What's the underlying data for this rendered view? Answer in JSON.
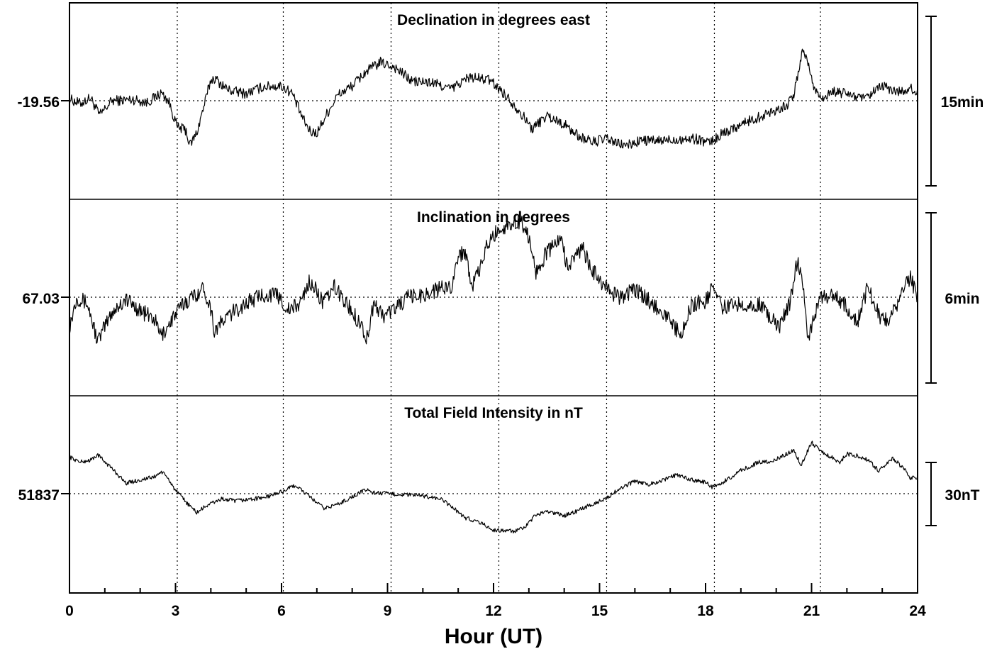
{
  "chart_data": {
    "type": "line",
    "xlabel": "Hour (UT)",
    "xlim": [
      0,
      24
    ],
    "xticks": [
      "0",
      "3",
      "6",
      "9",
      "12",
      "15",
      "18",
      "21",
      "24"
    ],
    "vertical_gridlines_hours": [
      3.05,
      6.05,
      9.1,
      12.15,
      15.2,
      18.25,
      21.25
    ],
    "panels": [
      {
        "title": "Declination in degrees east",
        "baseline_label": "-19.56",
        "scale_label": "15min",
        "series": [
          {
            "x": 0,
            "y": 0.3
          },
          {
            "x": 0.3,
            "y": -0.5
          },
          {
            "x": 0.6,
            "y": 0.5
          },
          {
            "x": 0.85,
            "y": -2.5
          },
          {
            "x": 1.2,
            "y": 0
          },
          {
            "x": 1.8,
            "y": 0.2
          },
          {
            "x": 2.2,
            "y": -0.3
          },
          {
            "x": 2.6,
            "y": 1.3
          },
          {
            "x": 2.8,
            "y": 0
          },
          {
            "x": 3.05,
            "y": -4.5
          },
          {
            "x": 3.3,
            "y": -5
          },
          {
            "x": 3.4,
            "y": -7.6
          },
          {
            "x": 3.6,
            "y": -5.5
          },
          {
            "x": 3.8,
            "y": -1
          },
          {
            "x": 4.0,
            "y": 3.5
          },
          {
            "x": 4.1,
            "y": 3.8
          },
          {
            "x": 4.5,
            "y": 1.8
          },
          {
            "x": 5.0,
            "y": 1.2
          },
          {
            "x": 5.5,
            "y": 2.4
          },
          {
            "x": 6.0,
            "y": 2.5
          },
          {
            "x": 6.3,
            "y": 1.3
          },
          {
            "x": 6.6,
            "y": -3
          },
          {
            "x": 6.8,
            "y": -5.2
          },
          {
            "x": 7.0,
            "y": -5.5
          },
          {
            "x": 7.3,
            "y": -2
          },
          {
            "x": 7.6,
            "y": 1
          },
          {
            "x": 8.0,
            "y": 2.5
          },
          {
            "x": 8.4,
            "y": 5
          },
          {
            "x": 8.8,
            "y": 6.5
          },
          {
            "x": 9.2,
            "y": 5.7
          },
          {
            "x": 9.7,
            "y": 3.3
          },
          {
            "x": 10.3,
            "y": 3
          },
          {
            "x": 10.8,
            "y": 2
          },
          {
            "x": 11.3,
            "y": 4
          },
          {
            "x": 11.9,
            "y": 3.5
          },
          {
            "x": 12.3,
            "y": 1.2
          },
          {
            "x": 12.7,
            "y": -1.5
          },
          {
            "x": 13.1,
            "y": -4.8
          },
          {
            "x": 13.5,
            "y": -2.5
          },
          {
            "x": 14.0,
            "y": -4
          },
          {
            "x": 14.4,
            "y": -6
          },
          {
            "x": 14.8,
            "y": -7
          },
          {
            "x": 15.2,
            "y": -6.5
          },
          {
            "x": 15.5,
            "y": -7.3
          },
          {
            "x": 15.8,
            "y": -7.6
          },
          {
            "x": 16.2,
            "y": -6.7
          },
          {
            "x": 16.6,
            "y": -6.9
          },
          {
            "x": 17.0,
            "y": -6.6
          },
          {
            "x": 17.4,
            "y": -6.5
          },
          {
            "x": 17.8,
            "y": -6.5
          },
          {
            "x": 18.1,
            "y": -7.2
          },
          {
            "x": 18.5,
            "y": -5.5
          },
          {
            "x": 19.0,
            "y": -4
          },
          {
            "x": 19.5,
            "y": -2.8
          },
          {
            "x": 20.0,
            "y": -1.5
          },
          {
            "x": 20.3,
            "y": -0.8
          },
          {
            "x": 20.5,
            "y": 1
          },
          {
            "x": 20.6,
            "y": 4
          },
          {
            "x": 20.75,
            "y": 8.9
          },
          {
            "x": 20.9,
            "y": 6.5
          },
          {
            "x": 21.05,
            "y": 2.3
          },
          {
            "x": 21.3,
            "y": 0.5
          },
          {
            "x": 21.6,
            "y": 1.5
          },
          {
            "x": 22.0,
            "y": 1.2
          },
          {
            "x": 22.5,
            "y": 0.2
          },
          {
            "x": 23.0,
            "y": 2.5
          },
          {
            "x": 23.4,
            "y": 1.5
          },
          {
            "x": 23.8,
            "y": 2
          },
          {
            "x": 24.0,
            "y": 1.5
          }
        ]
      },
      {
        "title": "Inclination in degrees",
        "baseline_label": "67.03",
        "scale_label": "6min",
        "series": [
          {
            "x": 0,
            "y": -4
          },
          {
            "x": 0.2,
            "y": 0
          },
          {
            "x": 0.5,
            "y": -0.8
          },
          {
            "x": 0.8,
            "y": -6
          },
          {
            "x": 1.2,
            "y": -2
          },
          {
            "x": 1.6,
            "y": -0.3
          },
          {
            "x": 2.0,
            "y": -1.8
          },
          {
            "x": 2.4,
            "y": -3
          },
          {
            "x": 2.6,
            "y": -5.3
          },
          {
            "x": 2.9,
            "y": -3
          },
          {
            "x": 3.2,
            "y": -1
          },
          {
            "x": 3.6,
            "y": 0.5
          },
          {
            "x": 3.8,
            "y": 1.2
          },
          {
            "x": 4.0,
            "y": -1.5
          },
          {
            "x": 4.1,
            "y": -4.5
          },
          {
            "x": 4.5,
            "y": -2.5
          },
          {
            "x": 5.0,
            "y": -0.8
          },
          {
            "x": 5.5,
            "y": 0.4
          },
          {
            "x": 5.9,
            "y": 0.2
          },
          {
            "x": 6.2,
            "y": -1.8
          },
          {
            "x": 6.5,
            "y": -1
          },
          {
            "x": 6.8,
            "y": 2.2
          },
          {
            "x": 7.2,
            "y": -0.8
          },
          {
            "x": 7.5,
            "y": 1.4
          },
          {
            "x": 7.9,
            "y": -1.3
          },
          {
            "x": 8.3,
            "y": -4
          },
          {
            "x": 8.4,
            "y": -6
          },
          {
            "x": 8.6,
            "y": -1
          },
          {
            "x": 8.9,
            "y": -2.5
          },
          {
            "x": 9.2,
            "y": -1.5
          },
          {
            "x": 9.6,
            "y": 0
          },
          {
            "x": 10.0,
            "y": 0.3
          },
          {
            "x": 10.4,
            "y": 1
          },
          {
            "x": 10.8,
            "y": 1.5
          },
          {
            "x": 11.0,
            "y": 5.5
          },
          {
            "x": 11.2,
            "y": 6.3
          },
          {
            "x": 11.4,
            "y": 1.5
          },
          {
            "x": 11.6,
            "y": 3.5
          },
          {
            "x": 11.8,
            "y": 6.8
          },
          {
            "x": 12.1,
            "y": 9
          },
          {
            "x": 12.5,
            "y": 10
          },
          {
            "x": 12.8,
            "y": 10.3
          },
          {
            "x": 13.0,
            "y": 8
          },
          {
            "x": 13.2,
            "y": 3.5
          },
          {
            "x": 13.5,
            "y": 6
          },
          {
            "x": 13.9,
            "y": 8
          },
          {
            "x": 14.1,
            "y": 4
          },
          {
            "x": 14.5,
            "y": 6.8
          },
          {
            "x": 14.8,
            "y": 3.5
          },
          {
            "x": 15.0,
            "y": 2.5
          },
          {
            "x": 15.2,
            "y": 1
          },
          {
            "x": 15.6,
            "y": 0
          },
          {
            "x": 16.0,
            "y": 1
          },
          {
            "x": 16.4,
            "y": -0.5
          },
          {
            "x": 16.8,
            "y": -2
          },
          {
            "x": 17.2,
            "y": -4.5
          },
          {
            "x": 17.3,
            "y": -5.6
          },
          {
            "x": 17.6,
            "y": -1
          },
          {
            "x": 18.0,
            "y": -0.6
          },
          {
            "x": 18.2,
            "y": 1.5
          },
          {
            "x": 18.5,
            "y": -1.5
          },
          {
            "x": 19.0,
            "y": -0.8
          },
          {
            "x": 19.5,
            "y": -1
          },
          {
            "x": 19.8,
            "y": -2.5
          },
          {
            "x": 20.1,
            "y": -4
          },
          {
            "x": 20.4,
            "y": -0.5
          },
          {
            "x": 20.6,
            "y": 5.2
          },
          {
            "x": 20.8,
            "y": 0
          },
          {
            "x": 20.9,
            "y": -5.8
          },
          {
            "x": 21.2,
            "y": -0.5
          },
          {
            "x": 21.6,
            "y": 0.5
          },
          {
            "x": 22.0,
            "y": -1.5
          },
          {
            "x": 22.3,
            "y": -3.3
          },
          {
            "x": 22.6,
            "y": 1.5
          },
          {
            "x": 22.9,
            "y": -2.5
          },
          {
            "x": 23.2,
            "y": -3.2
          },
          {
            "x": 23.6,
            "y": 1
          },
          {
            "x": 23.8,
            "y": 2.7
          },
          {
            "x": 24.0,
            "y": -0.3
          }
        ]
      },
      {
        "title": "Total Field Intensity in nT",
        "baseline_label": "51837",
        "scale_label": "30nT",
        "series": [
          {
            "x": 0,
            "y": 35
          },
          {
            "x": 0.3,
            "y": 30
          },
          {
            "x": 0.6,
            "y": 32
          },
          {
            "x": 0.8,
            "y": 37
          },
          {
            "x": 1.2,
            "y": 24
          },
          {
            "x": 1.6,
            "y": 10
          },
          {
            "x": 2.0,
            "y": 13
          },
          {
            "x": 2.4,
            "y": 16
          },
          {
            "x": 2.6,
            "y": 21
          },
          {
            "x": 2.8,
            "y": 14
          },
          {
            "x": 3.0,
            "y": 3
          },
          {
            "x": 3.3,
            "y": -8
          },
          {
            "x": 3.6,
            "y": -18
          },
          {
            "x": 3.9,
            "y": -11
          },
          {
            "x": 4.3,
            "y": -5
          },
          {
            "x": 4.7,
            "y": -7
          },
          {
            "x": 5.2,
            "y": -5
          },
          {
            "x": 5.6,
            "y": -3
          },
          {
            "x": 6.0,
            "y": 2
          },
          {
            "x": 6.4,
            "y": 8
          },
          {
            "x": 6.8,
            "y": -3
          },
          {
            "x": 7.2,
            "y": -14
          },
          {
            "x": 7.6,
            "y": -10
          },
          {
            "x": 8.0,
            "y": -3
          },
          {
            "x": 8.4,
            "y": 4
          },
          {
            "x": 8.6,
            "y": 1
          },
          {
            "x": 9.0,
            "y": 0
          },
          {
            "x": 9.5,
            "y": -1
          },
          {
            "x": 10.0,
            "y": -2
          },
          {
            "x": 10.5,
            "y": -5
          },
          {
            "x": 10.8,
            "y": -12
          },
          {
            "x": 11.2,
            "y": -23
          },
          {
            "x": 11.6,
            "y": -27
          },
          {
            "x": 12.0,
            "y": -35
          },
          {
            "x": 12.3,
            "y": -35
          },
          {
            "x": 12.6,
            "y": -36
          },
          {
            "x": 12.9,
            "y": -32
          },
          {
            "x": 13.2,
            "y": -20
          },
          {
            "x": 13.6,
            "y": -17
          },
          {
            "x": 14.0,
            "y": -21
          },
          {
            "x": 14.4,
            "y": -16
          },
          {
            "x": 14.8,
            "y": -10
          },
          {
            "x": 15.2,
            "y": -4
          },
          {
            "x": 15.6,
            "y": 5
          },
          {
            "x": 16.0,
            "y": 12
          },
          {
            "x": 16.4,
            "y": 9
          },
          {
            "x": 16.8,
            "y": 13
          },
          {
            "x": 17.2,
            "y": 18
          },
          {
            "x": 17.6,
            "y": 13
          },
          {
            "x": 18.0,
            "y": 11
          },
          {
            "x": 18.2,
            "y": 6
          },
          {
            "x": 18.6,
            "y": 13
          },
          {
            "x": 19.0,
            "y": 22
          },
          {
            "x": 19.5,
            "y": 30
          },
          {
            "x": 19.9,
            "y": 31
          },
          {
            "x": 20.2,
            "y": 36
          },
          {
            "x": 20.5,
            "y": 42
          },
          {
            "x": 20.7,
            "y": 27
          },
          {
            "x": 21.0,
            "y": 49
          },
          {
            "x": 21.2,
            "y": 42
          },
          {
            "x": 21.5,
            "y": 36
          },
          {
            "x": 21.8,
            "y": 30
          },
          {
            "x": 22.0,
            "y": 38
          },
          {
            "x": 22.3,
            "y": 36
          },
          {
            "x": 22.6,
            "y": 32
          },
          {
            "x": 22.9,
            "y": 22
          },
          {
            "x": 23.3,
            "y": 34
          },
          {
            "x": 23.6,
            "y": 24
          },
          {
            "x": 23.8,
            "y": 15
          },
          {
            "x": 24.0,
            "y": 16
          }
        ]
      }
    ]
  }
}
